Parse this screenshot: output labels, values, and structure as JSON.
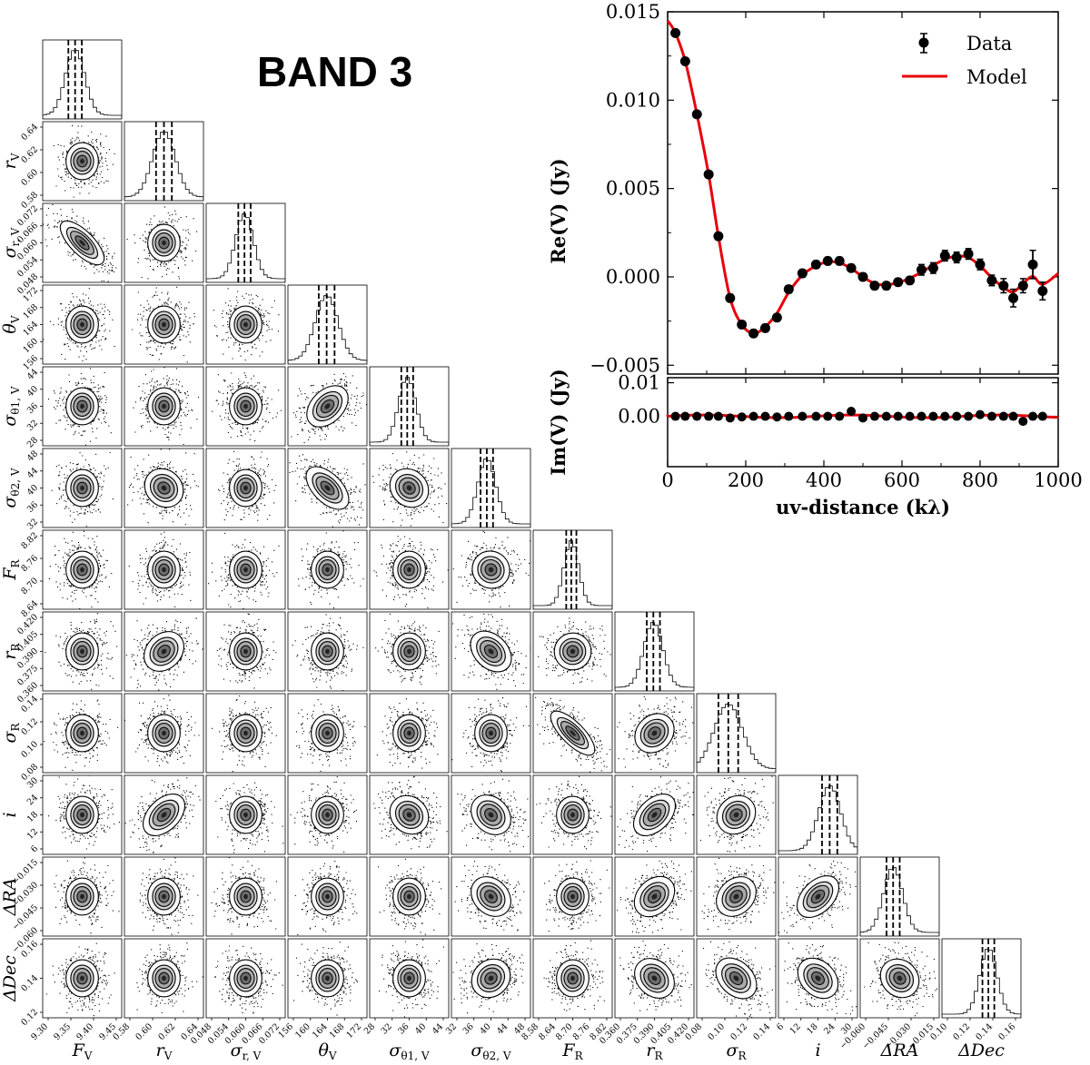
{
  "figure": {
    "title": "BAND 3"
  },
  "chart_data": [
    {
      "type": "corner",
      "title": "BAND 3",
      "params": [
        {
          "key": "FV",
          "label": "F",
          "sub": "V",
          "ticks": [
            "9.30",
            "9.35",
            "9.40",
            "9.45"
          ],
          "range": [
            9.27,
            9.47
          ],
          "q": [
            9.335,
            9.352,
            9.369
          ],
          "side": false
        },
        {
          "key": "rV",
          "label": "r",
          "sub": "V",
          "ticks": [
            "0.58",
            "0.60",
            "0.62",
            "0.64"
          ],
          "range": [
            0.565,
            0.655
          ],
          "q": [
            0.601,
            0.61,
            0.619
          ],
          "side": true
        },
        {
          "key": "sigrV",
          "label": "σ",
          "sub": "r, V",
          "ticks": [
            "0.048",
            "0.054",
            "0.060",
            "0.066",
            "0.072"
          ],
          "range": [
            0.044,
            0.076
          ],
          "q": [
            0.057,
            0.0595,
            0.062
          ],
          "side": true
        },
        {
          "key": "thetaV",
          "label": "θ",
          "sub": "V",
          "ticks": [
            "156",
            "160",
            "164",
            "168",
            "172"
          ],
          "range": [
            154,
            174
          ],
          "q": [
            161.8,
            163.8,
            165.8
          ],
          "side": true
        },
        {
          "key": "sigt1V",
          "label": "σ",
          "sub": "θ1, V",
          "ticks": [
            "28",
            "32",
            "36",
            "40",
            "44"
          ],
          "range": [
            26,
            46
          ],
          "q": [
            34.0,
            35.5,
            37.0
          ],
          "side": true
        },
        {
          "key": "sigt2V",
          "label": "σ",
          "sub": "θ2, V",
          "ticks": [
            "32",
            "36",
            "40",
            "44",
            "48"
          ],
          "range": [
            30,
            49
          ],
          "q": [
            37.0,
            38.5,
            40.0
          ],
          "side": true
        },
        {
          "key": "FR",
          "label": "F",
          "sub": "R",
          "ticks": [
            "8.58",
            "8.64",
            "8.70",
            "8.76",
            "8.82"
          ],
          "range": [
            8.56,
            8.84
          ],
          "q": [
            8.677,
            8.695,
            8.713
          ],
          "side": true
        },
        {
          "key": "rR",
          "label": "r",
          "sub": "R",
          "ticks": [
            "0.360",
            "0.375",
            "0.390",
            "0.405",
            "0.420"
          ],
          "range": [
            0.354,
            0.426
          ],
          "q": [
            0.383,
            0.389,
            0.395
          ],
          "side": true
        },
        {
          "key": "sigR",
          "label": "σ",
          "sub": "R",
          "ticks": [
            "0.08",
            "0.10",
            "0.12",
            "0.14"
          ],
          "range": [
            0.07,
            0.15
          ],
          "q": [
            0.092,
            0.102,
            0.112
          ],
          "side": true
        },
        {
          "key": "inc",
          "label": "i",
          "sub": "",
          "ticks": [
            "6",
            "12",
            "18",
            "24",
            "30"
          ],
          "range": [
            3,
            32
          ],
          "q": [
            19.0,
            21.8,
            24.6
          ],
          "side": true
        },
        {
          "key": "dRA",
          "label": "ΔRA",
          "sub": "",
          "ticks": [
            "−0.060",
            "−0.045",
            "−0.030",
            "−0.015"
          ],
          "range": [
            -0.068,
            -0.008
          ],
          "q": [
            -0.048,
            -0.043,
            -0.038
          ],
          "side": true
        },
        {
          "key": "dDec",
          "label": "ΔDec",
          "sub": "",
          "ticks": [
            "0.10",
            "0.12",
            "0.14",
            "0.16"
          ],
          "range": [
            0.09,
            0.17
          ],
          "q": [
            0.131,
            0.137,
            0.143
          ],
          "side": false
        }
      ],
      "left_ticks": {
        "rV": [
          "0.58",
          "0.60",
          "0.62",
          "0.64"
        ],
        "sigrV": [
          "0.048",
          "0.054",
          "0.060",
          "0.066",
          "0.072"
        ],
        "thetaV": [
          "156",
          "160",
          "164",
          "168",
          "172"
        ],
        "sigt1V": [
          "28",
          "32",
          "36",
          "40",
          "44"
        ],
        "sigt2V": [
          "32",
          "36",
          "40",
          "44",
          "48"
        ],
        "FR": [
          "8.64",
          "8.70",
          "8.76",
          "8.82"
        ],
        "rR": [
          "0.360",
          "0.375",
          "0.390",
          "0.405",
          "0.420"
        ],
        "sigR": [
          "0.08",
          "0.10",
          "0.12",
          "0.14"
        ],
        "inc": [
          "6",
          "12",
          "18",
          "24",
          "30"
        ],
        "dRA": [
          "−0.060",
          "−0.045",
          "−0.030",
          "−0.015"
        ],
        "dDec": [
          "0.12",
          "0.14",
          "0.16"
        ]
      },
      "correlations": [
        {
          "i": 2,
          "j": 0,
          "r": -0.85
        },
        {
          "i": 1,
          "j": 0,
          "r": 0.0
        },
        {
          "i": 3,
          "j": 0,
          "r": 0.0
        },
        {
          "i": 4,
          "j": 3,
          "r": 0.55
        },
        {
          "i": 5,
          "j": 1,
          "r": -0.3
        },
        {
          "i": 5,
          "j": 3,
          "r": -0.7
        },
        {
          "i": 5,
          "j": 4,
          "r": -0.3
        },
        {
          "i": 7,
          "j": 1,
          "r": 0.4
        },
        {
          "i": 7,
          "j": 5,
          "r": -0.5
        },
        {
          "i": 7,
          "j": 6,
          "r": -0.15
        },
        {
          "i": 8,
          "j": 6,
          "r": -0.88
        },
        {
          "i": 8,
          "j": 7,
          "r": 0.35
        },
        {
          "i": 9,
          "j": 1,
          "r": 0.6
        },
        {
          "i": 9,
          "j": 4,
          "r": -0.3
        },
        {
          "i": 9,
          "j": 5,
          "r": -0.4
        },
        {
          "i": 9,
          "j": 7,
          "r": 0.6
        },
        {
          "i": 9,
          "j": 8,
          "r": 0.3
        },
        {
          "i": 10,
          "j": 5,
          "r": -0.4
        },
        {
          "i": 10,
          "j": 7,
          "r": 0.45
        },
        {
          "i": 10,
          "j": 8,
          "r": 0.4
        },
        {
          "i": 10,
          "j": 9,
          "r": 0.6
        },
        {
          "i": 11,
          "j": 5,
          "r": 0.3
        },
        {
          "i": 11,
          "j": 7,
          "r": -0.4
        },
        {
          "i": 11,
          "j": 8,
          "r": -0.5
        },
        {
          "i": 11,
          "j": 9,
          "r": -0.45
        },
        {
          "i": 11,
          "j": 10,
          "r": -0.3
        },
        {
          "i": 6,
          "j": 5,
          "r": -0.2
        },
        {
          "i": 4,
          "j": 5,
          "r": 0.0
        }
      ]
    },
    {
      "type": "scatter",
      "title": "",
      "xlabel": "uv-distance (kλ)",
      "ylabel_top": "Re(V) (Jy)",
      "ylabel_bottom": "Im(V) (Jy)",
      "xlim": [
        0,
        1000
      ],
      "ylim_top": [
        -0.0055,
        0.015
      ],
      "ylim_bottom": [
        -0.015,
        0.0115
      ],
      "xticks": [
        "0",
        "200",
        "400",
        "600",
        "800",
        "1000"
      ],
      "yticks_top": [
        "−0.005",
        "0.000",
        "0.005",
        "0.010",
        "0.015"
      ],
      "yticks_bottom": [
        "0.00",
        "0.01"
      ],
      "legend": {
        "data": "Data",
        "model": "Model",
        "position": "top-right"
      },
      "model_color": "#e8000b",
      "data_color": "#000000",
      "series": [
        {
          "name": "Data (Re)",
          "x": [
            20,
            45,
            75,
            105,
            130,
            160,
            190,
            220,
            250,
            280,
            310,
            345,
            380,
            410,
            440,
            470,
            500,
            530,
            560,
            590,
            620,
            650,
            680,
            710,
            740,
            770,
            800,
            830,
            860,
            885,
            910,
            935,
            960
          ],
          "values": [
            0.0138,
            0.0122,
            0.0092,
            0.0058,
            0.0023,
            -0.0012,
            -0.0027,
            -0.0032,
            -0.0029,
            -0.0023,
            -0.0007,
            0.0002,
            0.0007,
            0.0009,
            0.0009,
            0.0005,
            0.0,
            -0.0005,
            -0.0005,
            -0.0003,
            -0.0002,
            0.0004,
            0.0005,
            0.0012,
            0.0011,
            0.0013,
            0.0007,
            -0.0002,
            -0.0005,
            -0.0012,
            -0.0005,
            0.0007,
            -0.0008
          ],
          "err": [
            0.0001,
            0.0001,
            0.0001,
            0.0001,
            0.0001,
            0.0002,
            0.0002,
            0.0002,
            0.0002,
            0.0002,
            0.0002,
            0.0002,
            0.0002,
            0.0002,
            0.0002,
            0.0002,
            0.0002,
            0.0002,
            0.0002,
            0.0002,
            0.0002,
            0.0003,
            0.0003,
            0.0003,
            0.0003,
            0.0003,
            0.0003,
            0.0003,
            0.0004,
            0.0005,
            0.0004,
            0.0008,
            0.0005
          ]
        },
        {
          "name": "Data (Im)",
          "x": [
            20,
            45,
            75,
            105,
            130,
            160,
            190,
            220,
            250,
            280,
            310,
            345,
            380,
            410,
            440,
            470,
            500,
            530,
            560,
            590,
            620,
            650,
            680,
            710,
            740,
            770,
            800,
            830,
            860,
            885,
            910,
            935,
            960
          ],
          "values": [
            0.0,
            0.0,
            0.0,
            0.0,
            0.0,
            -0.0005,
            -0.0002,
            0.0,
            0.0,
            -0.0002,
            0.0,
            0.0,
            0.0,
            0.0,
            0.0,
            0.0015,
            -0.0005,
            0.0,
            0.0,
            0.0,
            0.0,
            0.0,
            0.0,
            0.0,
            0.0,
            0.0,
            0.0005,
            0.0,
            0.0,
            0.0,
            -0.0015,
            0.0,
            0.0
          ]
        }
      ]
    }
  ]
}
